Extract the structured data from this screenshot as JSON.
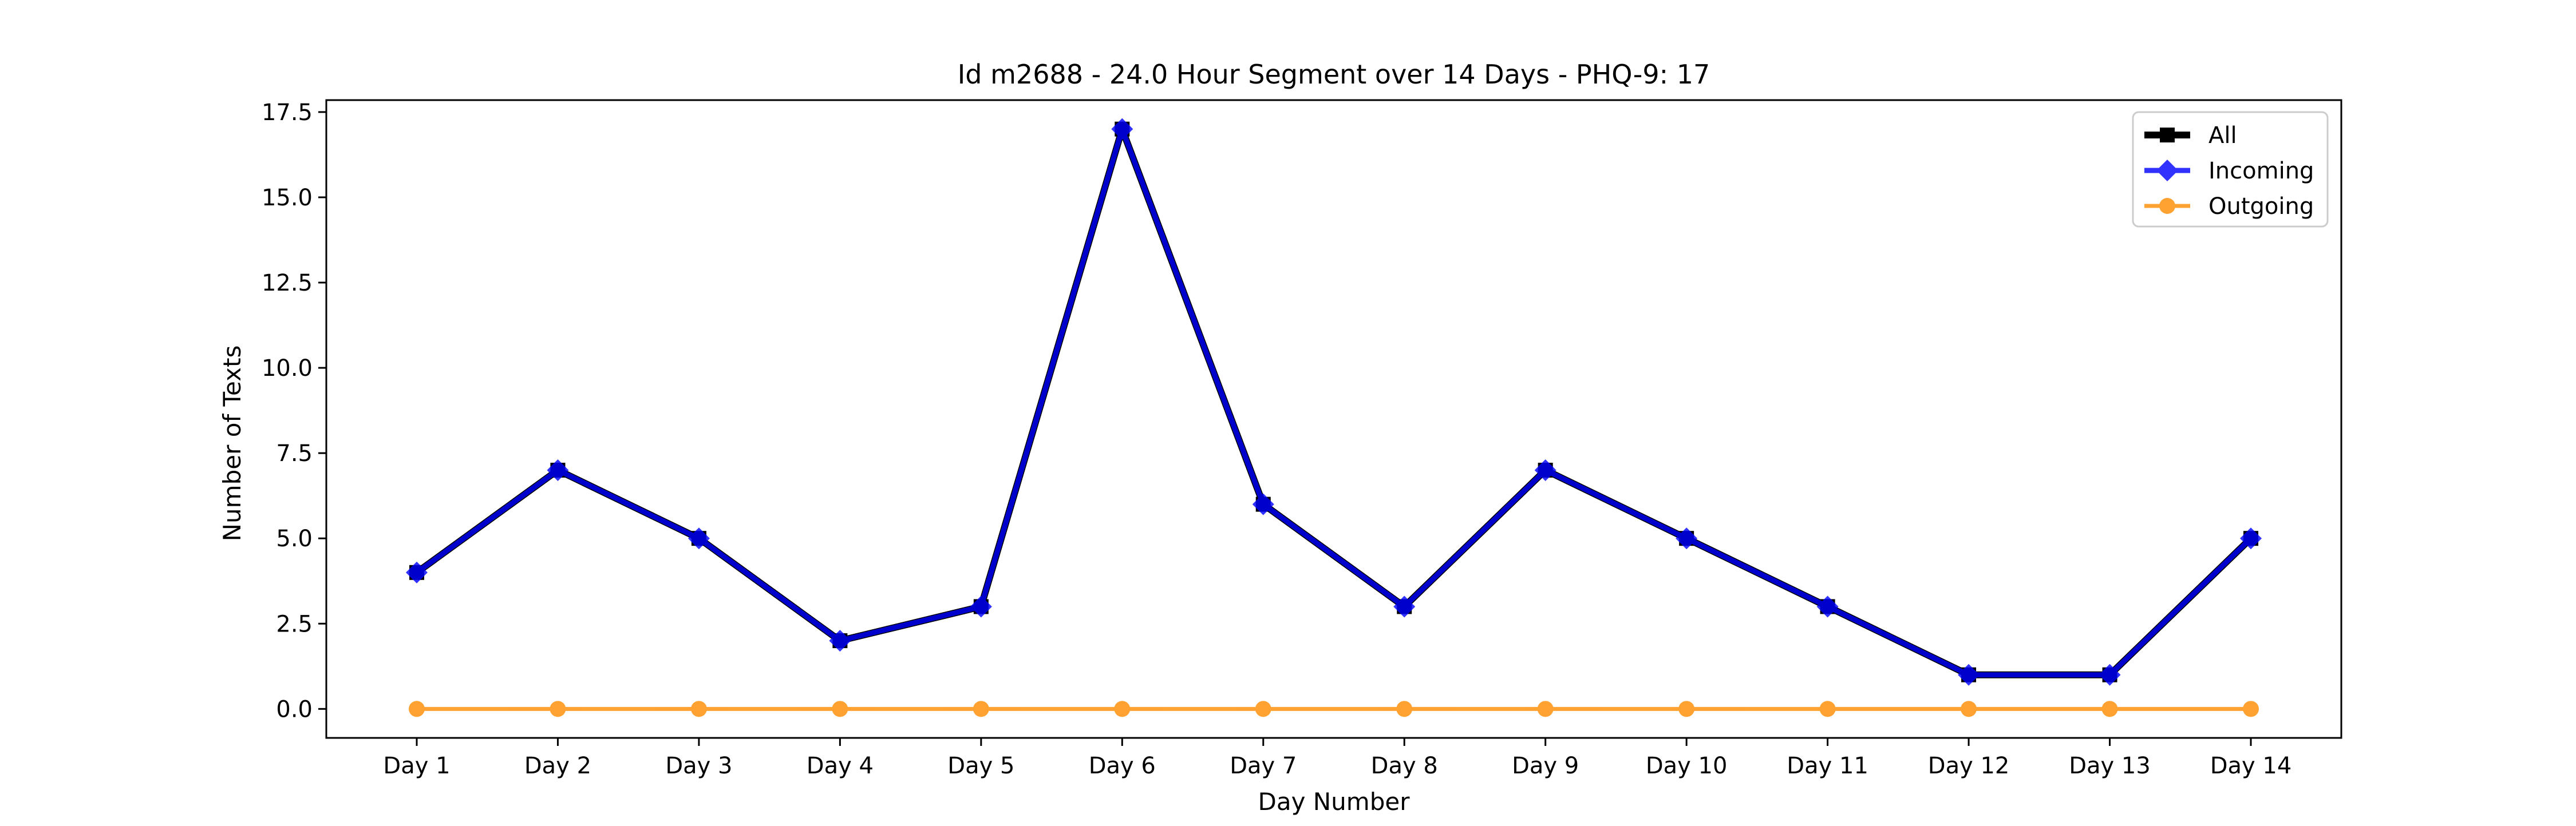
{
  "chart_data": {
    "type": "line",
    "title": "Id m2688 - 24.0 Hour Segment over 14 Days - PHQ-9: 17",
    "xlabel": "Day Number",
    "ylabel": "Number of Texts",
    "categories": [
      "Day 1",
      "Day 2",
      "Day 3",
      "Day 4",
      "Day 5",
      "Day 6",
      "Day 7",
      "Day 8",
      "Day 9",
      "Day 10",
      "Day 11",
      "Day 12",
      "Day 13",
      "Day 14"
    ],
    "ylim": [
      -0.85,
      17.85
    ],
    "yticks": [
      0.0,
      2.5,
      5.0,
      7.5,
      10.0,
      12.5,
      15.0,
      17.5
    ],
    "ytick_labels": [
      "0.0",
      "2.5",
      "5.0",
      "7.5",
      "10.0",
      "12.5",
      "15.0",
      "17.5"
    ],
    "grid": false,
    "legend_position": "top-right",
    "series": [
      {
        "name": "All",
        "color": "#000000",
        "marker": "square",
        "values": [
          4,
          7,
          5,
          2,
          3,
          17,
          6,
          3,
          7,
          5,
          3,
          1,
          1,
          5
        ]
      },
      {
        "name": "Incoming",
        "color": "#0000ff",
        "marker": "diamond",
        "values": [
          4,
          7,
          5,
          2,
          3,
          17,
          6,
          3,
          7,
          5,
          3,
          1,
          1,
          5
        ]
      },
      {
        "name": "Outgoing",
        "color": "#ff8c00",
        "marker": "circle",
        "values": [
          0,
          0,
          0,
          0,
          0,
          0,
          0,
          0,
          0,
          0,
          0,
          0,
          0,
          0
        ]
      }
    ]
  }
}
